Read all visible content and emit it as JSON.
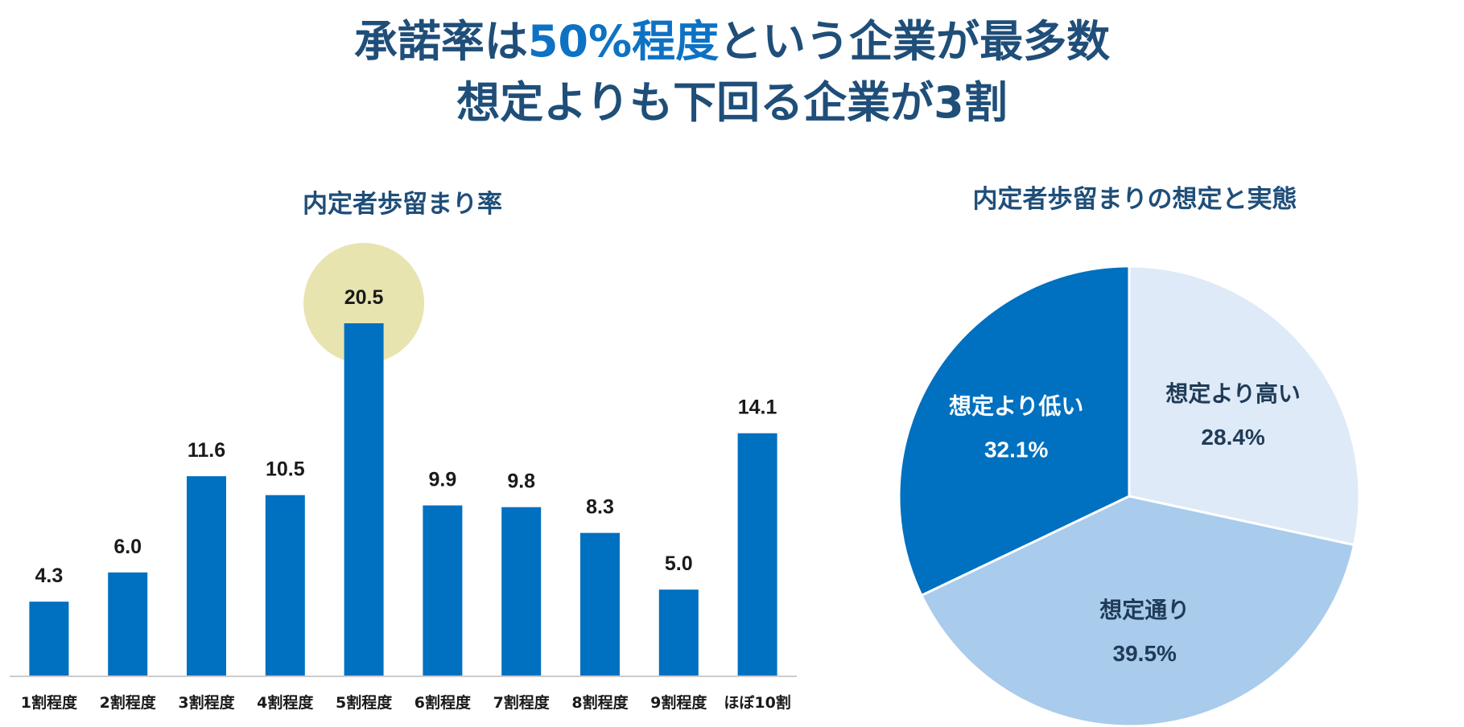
{
  "headline": {
    "line1_prefix": "承諾率は",
    "line1_accent": "50%程度",
    "line1_suffix": "という企業が最多数",
    "line2": "想定よりも下回る企業が3割"
  },
  "colors": {
    "headline": "#1f4e79",
    "accent": "#0e72c4",
    "bar": "#0070c0",
    "highlight_circle": "#e8e4b0",
    "pie_low": "#0070c0",
    "pie_as_expected": "#a9cbec",
    "pie_high": "#deeaf7"
  },
  "chart_data": [
    {
      "type": "bar",
      "title": "内定者歩留まり率",
      "categories": [
        "1割程度",
        "2割程度",
        "3割程度",
        "4割程度",
        "5割程度",
        "6割程度",
        "7割程度",
        "8割程度",
        "9割程度",
        "ほぼ10割"
      ],
      "values": [
        4.3,
        6.0,
        11.6,
        10.5,
        20.5,
        9.9,
        9.8,
        8.3,
        5.0,
        14.1
      ],
      "value_labels": [
        "4.3",
        "6.0",
        "11.6",
        "10.5",
        "20.5",
        "9.9",
        "9.8",
        "8.3",
        "5.0",
        "14.1"
      ],
      "highlight_index": 4,
      "ylim": [
        0,
        20.5
      ],
      "grid": false,
      "xlabel": "",
      "ylabel": ""
    },
    {
      "type": "pie",
      "title": "内定者歩留まりの想定と実態",
      "slices": [
        {
          "label": "想定より高い",
          "value": 28.4,
          "value_label": "28.4%"
        },
        {
          "label": "想定通り",
          "value": 39.5,
          "value_label": "39.5%"
        },
        {
          "label": "想定より低い",
          "value": 32.1,
          "value_label": "32.1%"
        }
      ],
      "start": "12 o'clock",
      "direction": "clockwise"
    }
  ]
}
